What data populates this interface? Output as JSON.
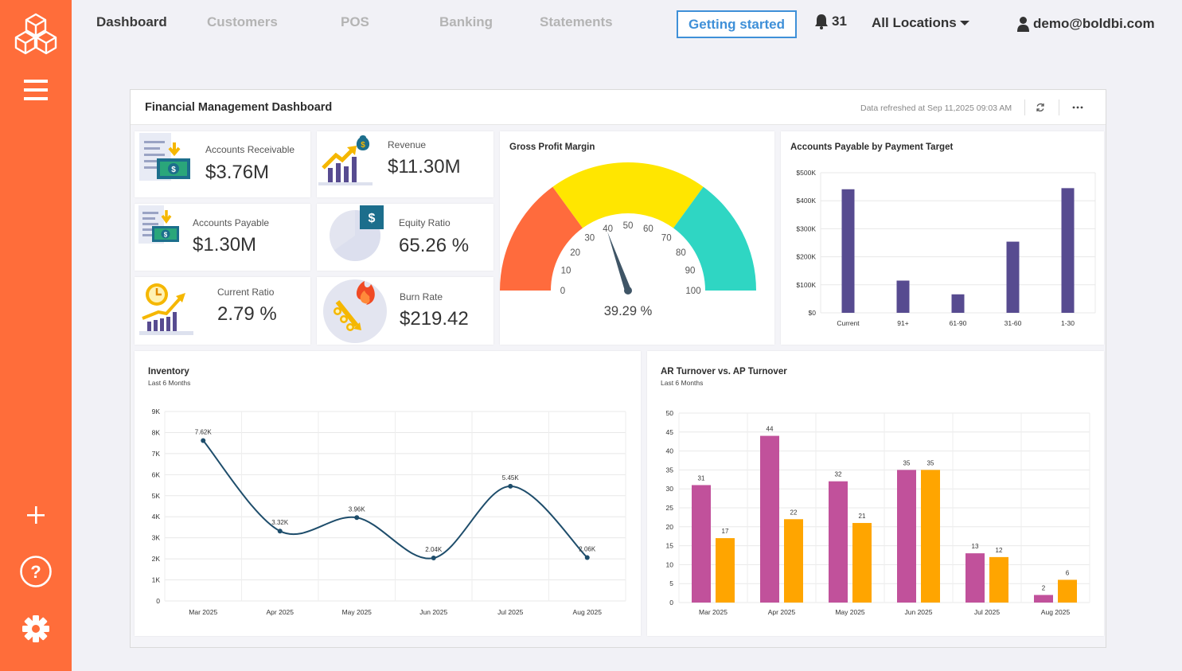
{
  "nav": {
    "tabs": [
      {
        "label": "Dashboard",
        "active": true
      },
      {
        "label": "Customers"
      },
      {
        "label": "POS"
      },
      {
        "label": "Banking"
      },
      {
        "label": "Statements"
      }
    ],
    "getting_started": "Getting started",
    "notifications_count": "31",
    "location": "All Locations",
    "user_email": "demo@boldbi.com"
  },
  "sidebar": {
    "icons": [
      "cubes-logo-icon",
      "hamburger-menu-icon",
      "plus-icon",
      "help-icon",
      "gear-icon"
    ]
  },
  "dashboard": {
    "title": "Financial Management Dashboard",
    "refreshed": "Data refreshed at Sep 11,2025 09:03 AM"
  },
  "kpis": {
    "accounts_receivable": {
      "label": "Accounts Receivable",
      "value": "$3.76M"
    },
    "revenue": {
      "label": "Revenue",
      "value": "$11.30M"
    },
    "accounts_payable": {
      "label": "Accounts Payable",
      "value": "$1.30M"
    },
    "equity_ratio": {
      "label": "Equity Ratio",
      "value": "65.26 %",
      "fraction": 0.6526
    },
    "current_ratio": {
      "label": "Current Ratio",
      "value": "2.79 %"
    },
    "burn_rate": {
      "label": "Burn Rate",
      "value": "$219.42"
    }
  },
  "chart_data": [
    {
      "type": "gauge",
      "title": "Gross Profit Margin",
      "value": 39.29,
      "value_label": "39.29 %",
      "min": 0,
      "max": 100,
      "ticks": [
        0,
        10,
        20,
        30,
        40,
        50,
        60,
        70,
        80,
        90,
        100
      ],
      "bands": [
        {
          "from": 0,
          "to": 30,
          "color": "#ff6b3d"
        },
        {
          "from": 30,
          "to": 70,
          "color": "#ffe600"
        },
        {
          "from": 70,
          "to": 100,
          "color": "#2fd6c3"
        }
      ]
    },
    {
      "type": "bar",
      "title": "Accounts Payable by Payment Target",
      "categories": [
        "Current",
        "91+",
        "61-90",
        "31-60",
        "1-30"
      ],
      "values": [
        441000,
        115000,
        66000,
        254000,
        445000
      ],
      "y_ticks": [
        "$0",
        "$100K",
        "$200K",
        "$300K",
        "$400K",
        "$500K"
      ],
      "ylim": [
        0,
        500000
      ],
      "color": "#574b90",
      "grid": true
    },
    {
      "type": "line",
      "title": "Inventory",
      "subtitle": "Last 6 Months",
      "categories": [
        "Mar 2025",
        "Apr 2025",
        "May 2025",
        "Jun 2025",
        "Jul 2025",
        "Aug 2025"
      ],
      "values": [
        7620,
        3320,
        3960,
        2040,
        5450,
        2060
      ],
      "labels": [
        "7.62K",
        "3.32K",
        "3.96K",
        "2.04K",
        "5.45K",
        "2.06K"
      ],
      "y_ticks": [
        "0",
        "1K",
        "2K",
        "3K",
        "4K",
        "5K",
        "6K",
        "7K",
        "8K",
        "9K"
      ],
      "ylim": [
        0,
        9000
      ],
      "color": "#1e4d6b",
      "grid": true
    },
    {
      "type": "bar",
      "title": "AR Turnover vs. AP Turnover",
      "subtitle": "Last 6 Months",
      "categories": [
        "Mar 2025",
        "Apr 2025",
        "May 2025",
        "Jun 2025",
        "Jul 2025",
        "Aug 2025"
      ],
      "series": [
        {
          "values": [
            31,
            44,
            32,
            35,
            13,
            2
          ],
          "color": "#c1519b"
        },
        {
          "values": [
            17,
            22,
            21,
            35,
            12,
            6
          ],
          "color": "#ffa500"
        }
      ],
      "y_ticks": [
        "0",
        "5",
        "10",
        "15",
        "20",
        "25",
        "30",
        "35",
        "40",
        "45",
        "50"
      ],
      "ylim": [
        0,
        50
      ],
      "grid": true
    }
  ]
}
